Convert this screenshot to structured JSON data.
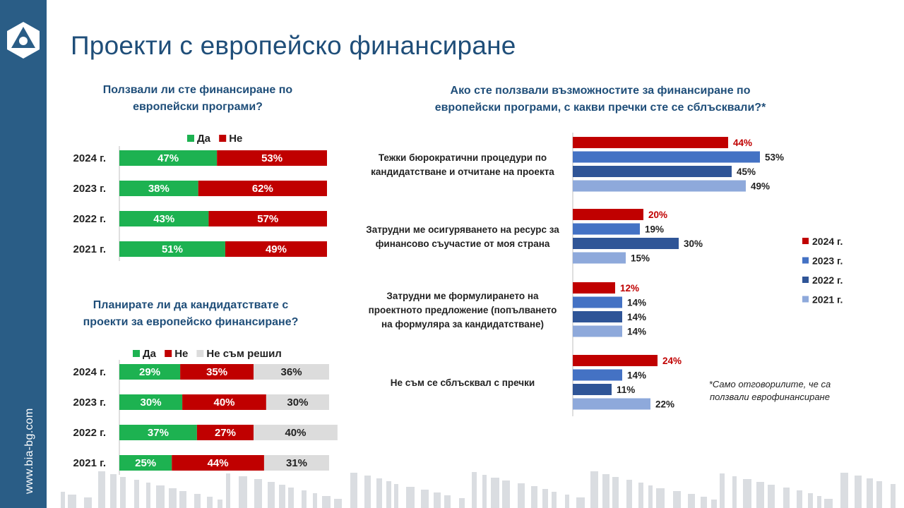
{
  "slide": {
    "title": "Проекти с европейско финансиране",
    "website": "www.bia-bg.com",
    "footnote_line1": "*Само отговорилите, че са",
    "footnote_line2": "ползвали еврофинансиране"
  },
  "colors": {
    "green": "#1db251",
    "red": "#c00000",
    "gray": "#dcdcdc",
    "dark_blue": "#1f4e79",
    "sidebar": "#2a5d86",
    "c2024": "#c00000",
    "c2023": "#4472c4",
    "c2022": "#2f5597",
    "c2021": "#8ea9db"
  },
  "chart_data": [
    {
      "type": "bar",
      "stacked": true,
      "orientation": "horizontal",
      "title_line1": "Ползвали ли сте финансиране по",
      "title_line2": "европейски програми?",
      "categories": [
        "2024 г.",
        "2023 г.",
        "2022 г.",
        "2021 г."
      ],
      "series": [
        {
          "name": "Да",
          "color": "#1db251",
          "values": [
            47,
            38,
            43,
            51
          ],
          "labels": [
            "47%",
            "38%",
            "43%",
            "51%"
          ]
        },
        {
          "name": "Не",
          "color": "#c00000",
          "values": [
            53,
            62,
            57,
            49
          ],
          "labels": [
            "53%",
            "62%",
            "57%",
            "49%"
          ]
        }
      ],
      "legend_placement": "top",
      "xlim": [
        0,
        100
      ]
    },
    {
      "type": "bar",
      "stacked": true,
      "orientation": "horizontal",
      "title_line1": "Планирате ли да кандидатствате с",
      "title_line2": "проекти за европейско финансиране?",
      "categories": [
        "2024 г.",
        "2023 г.",
        "2022 г.",
        "2021 г."
      ],
      "series": [
        {
          "name": "Да",
          "color": "#1db251",
          "values": [
            29,
            30,
            37,
            25
          ],
          "labels": [
            "29%",
            "30%",
            "37%",
            "25%"
          ]
        },
        {
          "name": "Не",
          "color": "#c00000",
          "values": [
            35,
            40,
            27,
            44
          ],
          "labels": [
            "35%",
            "40%",
            "27%",
            "44%"
          ]
        },
        {
          "name": "Не съм решил",
          "color": "#dcdcdc",
          "values": [
            36,
            30,
            40,
            31
          ],
          "labels": [
            "36%",
            "30%",
            "40%",
            "31%"
          ]
        }
      ],
      "legend_placement": "top",
      "xlim": [
        0,
        100
      ]
    },
    {
      "type": "bar",
      "stacked": false,
      "orientation": "horizontal",
      "title_line1": "Ако сте ползвали възможностите за финансиране по",
      "title_line2": "европейски програми, с какви пречки сте се сблъсквали?*",
      "categories": [
        [
          "Тежки бюрократични процедури по",
          "кандидатстване и отчитане на проекта"
        ],
        [
          "Затрудни ме осигуряването на ресурс за",
          "финансово съучастие от моя страна"
        ],
        [
          "Затрудни ме формулирането на",
          "проектното предложение (попълването",
          "на формуляра за кандидатстване)"
        ],
        [
          "Не съм се сблъсквал с пречки"
        ]
      ],
      "series": [
        {
          "name": "2024 г.",
          "color": "#c00000",
          "values": [
            44,
            20,
            12,
            24
          ],
          "labels": [
            "44%",
            "20%",
            "12%",
            "24%"
          ]
        },
        {
          "name": "2023 г.",
          "color": "#4472c4",
          "values": [
            53,
            19,
            14,
            14
          ],
          "labels": [
            "53%",
            "19%",
            "14%",
            "14%"
          ]
        },
        {
          "name": "2022 г.",
          "color": "#2f5597",
          "values": [
            45,
            30,
            14,
            11
          ],
          "labels": [
            "45%",
            "30%",
            "14%",
            "11%"
          ]
        },
        {
          "name": "2021 г.",
          "color": "#8ea9db",
          "values": [
            49,
            15,
            14,
            22
          ],
          "labels": [
            "49%",
            "15%",
            "14%",
            "22%"
          ]
        }
      ],
      "legend_placement": "right",
      "xlim": [
        0,
        100
      ]
    }
  ]
}
